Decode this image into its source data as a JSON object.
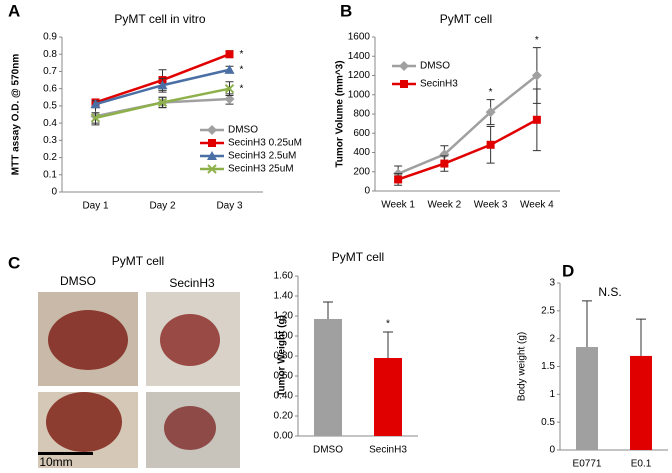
{
  "chart_data": [
    {
      "type": "line",
      "panel": "A",
      "title": "PyMT cell in vitro",
      "ylabel": "MTT assay O.D. @ 570nm",
      "categories": [
        "Day 1",
        "Day 2",
        "Day 3"
      ],
      "ylim": [
        0,
        0.9
      ],
      "yticks": [
        0,
        0.1,
        0.2,
        0.3,
        0.4,
        0.5,
        0.6,
        0.7,
        0.8,
        0.9
      ],
      "series": [
        {
          "name": "DMSO",
          "color": "#a0a0a0",
          "marker": "diamond",
          "values": [
            0.44,
            0.52,
            0.54
          ],
          "errors": [
            0.05,
            0.03,
            0.03
          ],
          "annotations": [
            null,
            null,
            null
          ]
        },
        {
          "name": "SecinH3 0.25uM",
          "color": "#e00000",
          "marker": "square",
          "values": [
            0.52,
            0.65,
            0.8
          ],
          "errors": [
            0.02,
            0.06,
            0.02
          ],
          "annotations": [
            null,
            null,
            "*"
          ]
        },
        {
          "name": "SecinH3 2.5uM",
          "color": "#4a6fa5",
          "marker": "triangle",
          "values": [
            0.51,
            0.62,
            0.71
          ],
          "errors": [
            0.02,
            0.04,
            0.02
          ],
          "annotations": [
            null,
            null,
            "*"
          ]
        },
        {
          "name": "SecinH3 25uM",
          "color": "#8db04a",
          "marker": "x",
          "values": [
            0.43,
            0.52,
            0.6
          ],
          "errors": [
            0.03,
            0.03,
            0.04
          ],
          "annotations": [
            null,
            null,
            "*"
          ]
        }
      ]
    },
    {
      "type": "line",
      "panel": "B",
      "title": "PyMT cell",
      "ylabel": "Tumor Volume (mm^3)",
      "categories": [
        "Week 1",
        "Week 2",
        "Week 3",
        "Week 4"
      ],
      "ylim": [
        0,
        1600
      ],
      "yticks": [
        0,
        200,
        400,
        600,
        800,
        1000,
        1200,
        1400,
        1600
      ],
      "series": [
        {
          "name": "DMSO",
          "color": "#a0a0a0",
          "marker": "diamond",
          "values": [
            180,
            380,
            820,
            1200
          ],
          "errors": [
            80,
            90,
            130,
            290
          ],
          "annotations": [
            null,
            null,
            "*",
            "*"
          ]
        },
        {
          "name": "SecinH3",
          "color": "#e00000",
          "marker": "square",
          "values": [
            120,
            285,
            480,
            740
          ],
          "errors": [
            60,
            80,
            190,
            320
          ],
          "annotations": [
            null,
            null,
            null,
            null
          ]
        }
      ]
    },
    {
      "type": "bar",
      "panel": "C",
      "title": "PyMT cell",
      "ylabel": "Tumor Weight (g)",
      "categories": [
        "DMSO",
        "SecinH3"
      ],
      "colors": [
        "#a0a0a0",
        "#e00000"
      ],
      "values": [
        1.17,
        0.78
      ],
      "errors": [
        0.17,
        0.26
      ],
      "annotations": [
        null,
        "*"
      ],
      "ylim": [
        0,
        1.6
      ],
      "yticks": [
        {
          "value": 0,
          "label": "0.00"
        },
        {
          "value": 0.2,
          "label": "0.20"
        },
        {
          "value": 0.4,
          "label": "0.40"
        },
        {
          "value": 0.6,
          "label": "0.60"
        },
        {
          "value": 0.8,
          "label": "0.80"
        },
        {
          "value": 1,
          "label": "1.00"
        },
        {
          "value": 1.2,
          "label": "1.20"
        },
        {
          "value": 1.4,
          "label": "1.40"
        },
        {
          "value": 1.6,
          "label": "1.60"
        }
      ]
    },
    {
      "type": "bar",
      "panel": "D",
      "title": "N.S.",
      "ylabel": "Body weight (g)",
      "categories": [
        "E0771",
        "E0.1"
      ],
      "colors": [
        "#a0a0a0",
        "#e00000"
      ],
      "values": [
        1.85,
        1.69
      ],
      "errors": [
        0.83,
        0.66
      ],
      "annotations": [
        null,
        null
      ],
      "ylim": [
        0,
        3
      ],
      "yticks": [
        0,
        0.5,
        1,
        1.5,
        2,
        2.5,
        3
      ]
    }
  ],
  "photos": {
    "title": "PyMT cell",
    "labels": [
      "DMSO",
      "SecinH3"
    ],
    "scale_bar": "10mm"
  }
}
